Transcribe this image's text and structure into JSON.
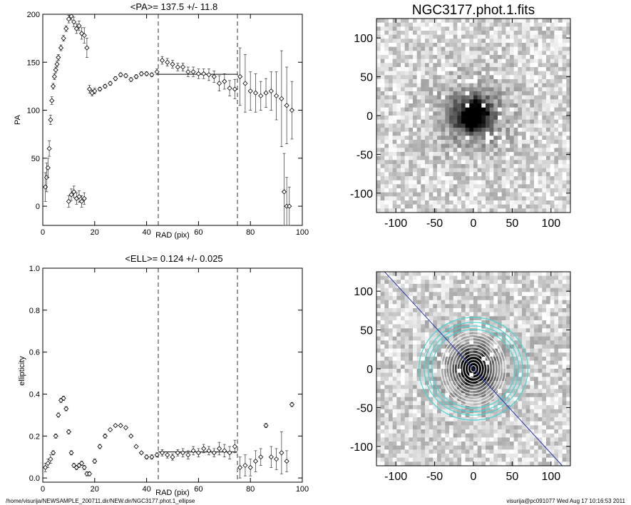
{
  "chart_data": [
    {
      "type": "scatter",
      "title": "<PA>= 137.5 +/-  11.8",
      "xlabel": "RAD (pix)",
      "ylabel": "PA",
      "xlim": [
        0,
        100
      ],
      "ylim": [
        -20,
        200
      ],
      "xticks": [
        0,
        20,
        40,
        60,
        80,
        100
      ],
      "yticks": [
        0,
        50,
        100,
        150,
        200
      ],
      "vlines": [
        44.5,
        75
      ],
      "mean_line": {
        "x": [
          44.5,
          75
        ],
        "y": 137.5
      },
      "series": [
        {
          "x": [
            1,
            1.5,
            2,
            2.5,
            3,
            3.5,
            4,
            4.5,
            5,
            5.5,
            6,
            7,
            8,
            9,
            10,
            11,
            12,
            13,
            14,
            15,
            16,
            17,
            18,
            19,
            20,
            22,
            24,
            26,
            28,
            30,
            32,
            34,
            36,
            38,
            40,
            42,
            44,
            46,
            48,
            50,
            52,
            54,
            56,
            58,
            60,
            62,
            64,
            66,
            68,
            70,
            72,
            74,
            76,
            78,
            80,
            82,
            84,
            86,
            88,
            90,
            92,
            94,
            96
          ],
          "y": [
            20,
            30,
            40,
            60,
            90,
            110,
            125,
            135,
            142,
            148,
            155,
            165,
            175,
            185,
            195,
            198,
            192,
            185,
            188,
            180,
            178,
            165,
            122,
            118,
            120,
            122,
            125,
            128,
            133,
            137,
            136,
            132,
            135,
            138,
            138,
            137,
            140,
            152,
            150,
            148,
            145,
            145,
            140,
            140,
            138,
            138,
            137,
            135,
            128,
            130,
            123,
            122,
            135,
            128,
            120,
            118,
            115,
            118,
            120,
            115,
            112,
            105,
            100
          ],
          "err": [
            15,
            15,
            10,
            8,
            5,
            4,
            3,
            3,
            3,
            3,
            3,
            3,
            3,
            3,
            4,
            4,
            5,
            5,
            5,
            6,
            8,
            10,
            4,
            3,
            3,
            2,
            2,
            2,
            2,
            2,
            2,
            2,
            2,
            2,
            2,
            2,
            3,
            4,
            4,
            4,
            4,
            4,
            5,
            5,
            5,
            5,
            6,
            6,
            8,
            8,
            8,
            10,
            30,
            30,
            20,
            20,
            15,
            15,
            20,
            25,
            50,
            40,
            30
          ]
        },
        {
          "x": [
            10,
            11,
            12,
            13,
            14,
            15,
            16
          ],
          "y": [
            5,
            12,
            15,
            8,
            10,
            5,
            8
          ],
          "err": [
            6,
            6,
            6,
            6,
            6,
            6,
            6
          ]
        },
        {
          "x": [
            93,
            94,
            95
          ],
          "y": [
            15,
            0,
            0
          ],
          "err": [
            40,
            30,
            20
          ]
        }
      ]
    },
    {
      "type": "scatter",
      "title": "<ELL>= 0.124 +/-  0.025",
      "xlabel": "RAD (pix)",
      "ylabel": "ellipticity",
      "xlim": [
        0,
        100
      ],
      "ylim": [
        -0.02,
        1.0
      ],
      "xticks": [
        0,
        20,
        40,
        60,
        80,
        100
      ],
      "yticks": [
        0.0,
        0.2,
        0.4,
        0.6,
        0.8,
        1.0
      ],
      "ytick_labels": [
        "0.0",
        "0.2",
        "0.4",
        "0.6",
        "0.8",
        "1.0"
      ],
      "vlines": [
        44.5,
        75
      ],
      "mean_line": {
        "x": [
          44.5,
          75
        ],
        "y": 0.124
      },
      "series": [
        {
          "x": [
            1,
            2,
            3,
            4,
            5,
            6,
            7,
            8,
            9,
            10,
            11,
            12,
            13,
            14,
            15,
            16,
            17,
            18,
            20,
            22,
            24,
            26,
            28,
            30,
            32,
            34,
            36,
            38,
            40,
            42,
            44,
            46,
            48,
            50,
            52,
            54,
            56,
            58,
            60,
            62,
            64,
            66,
            68,
            70,
            72,
            74,
            76,
            78,
            80,
            82,
            84,
            86,
            88,
            90,
            92,
            94,
            96
          ],
          "y": [
            0.05,
            0.07,
            0.09,
            0.12,
            0.2,
            0.3,
            0.37,
            0.38,
            0.33,
            0.22,
            0.12,
            0.06,
            0.05,
            0.06,
            0.07,
            0.05,
            0.02,
            0.02,
            0.08,
            0.15,
            0.2,
            0.23,
            0.25,
            0.25,
            0.24,
            0.2,
            0.15,
            0.12,
            0.1,
            0.1,
            0.11,
            0.12,
            0.11,
            0.1,
            0.12,
            0.12,
            0.11,
            0.13,
            0.12,
            0.14,
            0.13,
            0.12,
            0.14,
            0.13,
            0.12,
            0.15,
            0.05,
            0.06,
            0.05,
            0.08,
            0.1,
            0.25,
            0.1,
            0.09,
            0.12,
            0.08,
            0.35
          ],
          "err": [
            0.02,
            0.02,
            0.02,
            0.01,
            0.01,
            0.01,
            0.01,
            0.01,
            0.01,
            0.01,
            0.01,
            0.01,
            0.01,
            0.01,
            0.01,
            0.01,
            0.01,
            0.01,
            0.01,
            0.01,
            0.01,
            0.005,
            0.005,
            0.005,
            0.005,
            0.005,
            0.005,
            0.005,
            0.01,
            0.01,
            0.01,
            0.015,
            0.015,
            0.015,
            0.015,
            0.02,
            0.02,
            0.02,
            0.02,
            0.02,
            0.02,
            0.02,
            0.03,
            0.03,
            0.03,
            0.03,
            0.05,
            0.05,
            0.04,
            0.05,
            0.04,
            0.01,
            0.05,
            0.05,
            0.1,
            0.05,
            0.01
          ]
        }
      ]
    },
    {
      "type": "heatmap",
      "title": "NGC3177.phot.1.fits",
      "xlim": [
        -125,
        125
      ],
      "ylim": [
        -125,
        125
      ],
      "xticks": [
        -100,
        -50,
        0,
        50,
        100
      ],
      "yticks": [
        -100,
        -50,
        0,
        50,
        100
      ]
    },
    {
      "type": "heatmap",
      "title": "",
      "xlim": [
        -125,
        125
      ],
      "ylim": [
        -125,
        125
      ],
      "xticks": [
        -100,
        -50,
        0,
        50,
        100
      ],
      "yticks": [
        -100,
        -50,
        0,
        50,
        100
      ],
      "pa_line_deg": 137.5,
      "cyan_ellipses_a": [
        55,
        60,
        65,
        72
      ],
      "white_contours_a": [
        4,
        8,
        12,
        16,
        20,
        24,
        28,
        32,
        36,
        40,
        44,
        48
      ],
      "ellipticity": 0.124
    }
  ],
  "footer": {
    "left": "/home/visurija/NEWSAMPLE_200711.dir/NEW.dir/NGC3177.phot.1_ellipse",
    "right": "visurija@pc091077  Wed Aug 17 10:16:53 2011"
  },
  "colors": {
    "axis": "#000000",
    "cyan": "#44d6d6",
    "blue": "#2233aa",
    "contour": "#ffffff"
  }
}
